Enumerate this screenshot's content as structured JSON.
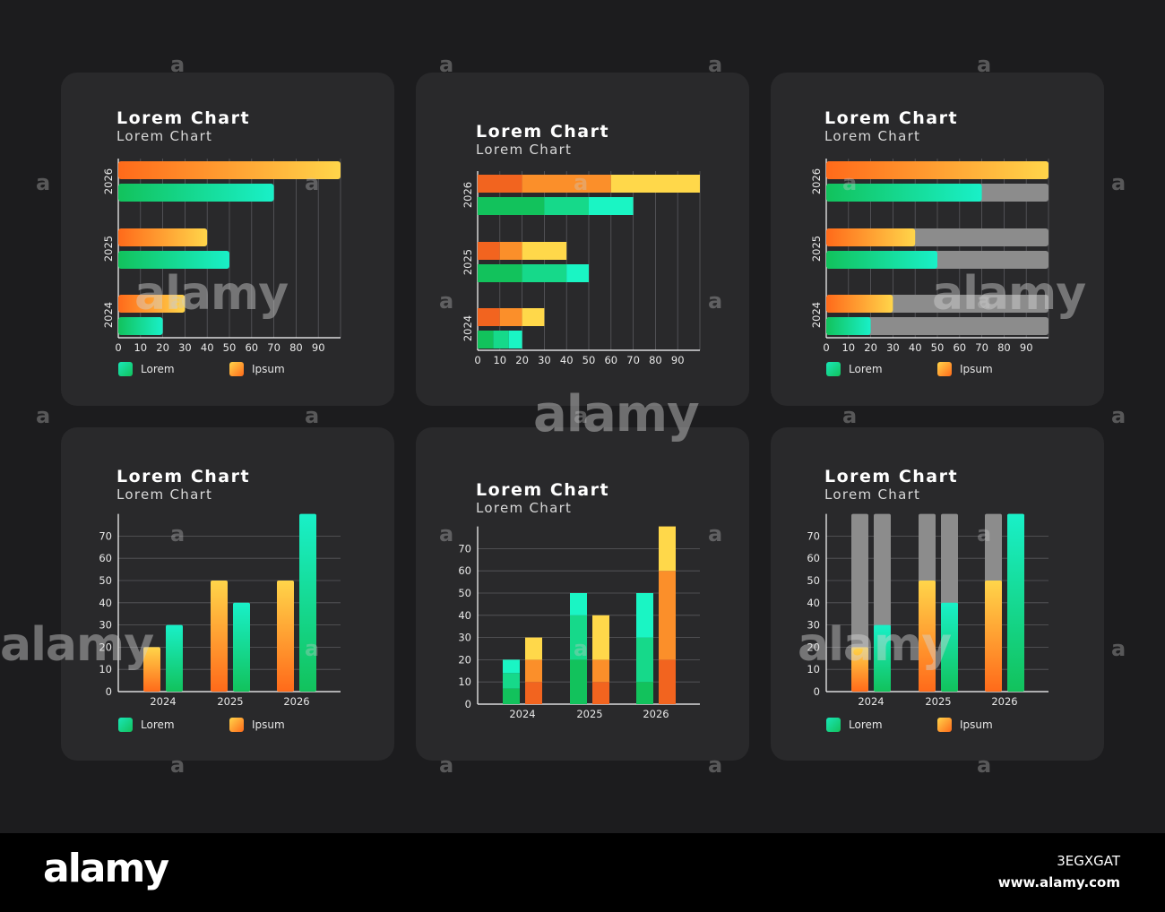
{
  "colors": {
    "background": "#1c1c1e",
    "card": "#29292b",
    "green_light": "#19f0c8",
    "green_dark": "#12c25c",
    "orange_dark": "#ff6a1a",
    "yellow": "#ffd54a",
    "gray_track": "#8c8c8c"
  },
  "chart_data": [
    {
      "type": "bar",
      "orientation": "horizontal",
      "title": "Lorem Chart",
      "subtitle": "Lorem Chart",
      "categories": [
        "2024",
        "2025",
        "2026"
      ],
      "series": [
        {
          "name": "Ipsum",
          "values": [
            30,
            40,
            100
          ]
        },
        {
          "name": "Lorem",
          "values": [
            20,
            50,
            70
          ]
        }
      ],
      "xlim": [
        0,
        100
      ],
      "x_ticks": [
        "0",
        "10",
        "20",
        "30",
        "40",
        "50",
        "60",
        "70",
        "80",
        "90"
      ],
      "grid": true,
      "legend": [
        "Lorem",
        "Ipsum"
      ],
      "legend_position": "bottom"
    },
    {
      "type": "bar",
      "orientation": "horizontal",
      "stacked_segments": true,
      "title": "Lorem Chart",
      "subtitle": "Lorem Chart",
      "categories": [
        "2024",
        "2025",
        "2026"
      ],
      "series": [
        {
          "name": "Ipsum",
          "values": [
            30,
            40,
            100
          ]
        },
        {
          "name": "Lorem",
          "values": [
            20,
            50,
            70
          ]
        }
      ],
      "xlim": [
        0,
        100
      ],
      "x_ticks": [
        "0",
        "10",
        "20",
        "30",
        "40",
        "50",
        "60",
        "70",
        "80",
        "90"
      ],
      "grid": true
    },
    {
      "type": "bar",
      "orientation": "horizontal",
      "progress_track": true,
      "title": "Lorem Chart",
      "subtitle": "Lorem Chart",
      "categories": [
        "2024",
        "2025",
        "2026"
      ],
      "series": [
        {
          "name": "Ipsum",
          "values": [
            30,
            40,
            100
          ]
        },
        {
          "name": "Lorem",
          "values": [
            20,
            50,
            70
          ]
        }
      ],
      "track_max": 100,
      "xlim": [
        0,
        100
      ],
      "x_ticks": [
        "0",
        "10",
        "20",
        "30",
        "40",
        "50",
        "60",
        "70",
        "80",
        "90"
      ],
      "grid": true,
      "legend": [
        "Lorem",
        "Ipsum"
      ],
      "legend_position": "bottom"
    },
    {
      "type": "bar",
      "orientation": "vertical",
      "title": "Lorem Chart",
      "subtitle": "Lorem Chart",
      "categories": [
        "2024",
        "2025",
        "2026"
      ],
      "series": [
        {
          "name": "Ipsum",
          "values": [
            20,
            50,
            50
          ]
        },
        {
          "name": "Lorem",
          "values": [
            30,
            40,
            80
          ]
        }
      ],
      "ylim": [
        0,
        80
      ],
      "y_ticks": [
        "0",
        "10",
        "20",
        "30",
        "40",
        "50",
        "60",
        "70"
      ],
      "grid": true,
      "legend": [
        "Lorem",
        "Ipsum"
      ],
      "legend_position": "bottom"
    },
    {
      "type": "bar",
      "orientation": "vertical",
      "stacked_segments": true,
      "title": "Lorem Chart",
      "subtitle": "Lorem Chart",
      "categories": [
        "2024",
        "2025",
        "2026"
      ],
      "series": [
        {
          "name": "Lorem",
          "values": [
            20,
            50,
            50
          ]
        },
        {
          "name": "Ipsum",
          "values": [
            30,
            40,
            80
          ]
        }
      ],
      "ylim": [
        0,
        80
      ],
      "y_ticks": [
        "0",
        "10",
        "20",
        "30",
        "40",
        "50",
        "60",
        "70"
      ],
      "grid": true
    },
    {
      "type": "bar",
      "orientation": "vertical",
      "progress_track": true,
      "title": "Lorem Chart",
      "subtitle": "Lorem Chart",
      "categories": [
        "2024",
        "2025",
        "2026"
      ],
      "series": [
        {
          "name": "Ipsum",
          "values": [
            20,
            50,
            50
          ]
        },
        {
          "name": "Lorem",
          "values": [
            30,
            40,
            80
          ]
        }
      ],
      "track_max": 80,
      "ylim": [
        0,
        80
      ],
      "y_ticks": [
        "0",
        "10",
        "20",
        "30",
        "40",
        "50",
        "60",
        "70"
      ],
      "grid": true,
      "legend": [
        "Lorem",
        "Ipsum"
      ],
      "legend_position": "bottom"
    }
  ],
  "watermark": {
    "logo": "alamy",
    "mark": "a"
  },
  "footer": {
    "logo": "alamy",
    "image_id": "3EGXGAT",
    "url": "www.alamy.com"
  }
}
